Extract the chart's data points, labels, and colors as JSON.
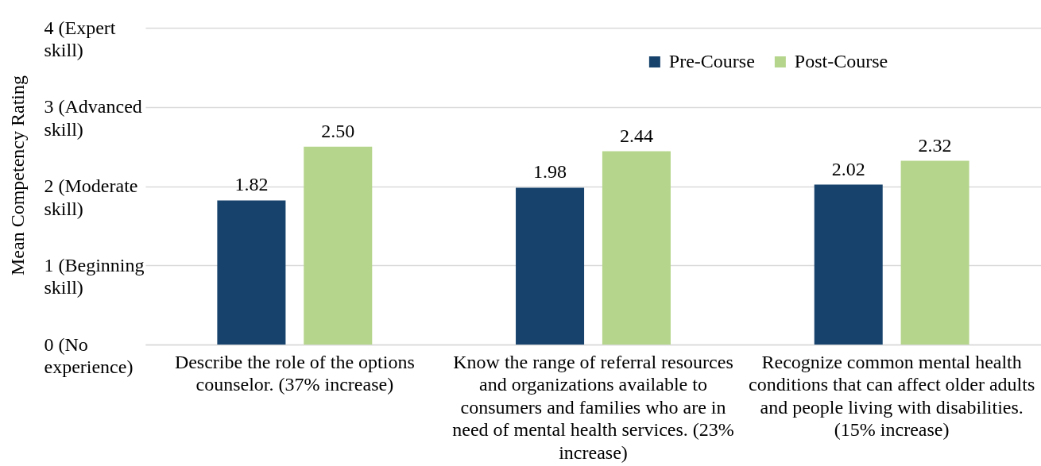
{
  "chart_data": {
    "type": "bar",
    "ylabel": "Mean Competency Rating",
    "categories": [
      "Describe the role of the options counselor. (37% increase)",
      "Know the range of referral resources and organizations available to consumers and families who are in need of mental health services. (23% increase)",
      "Recognize common mental health conditions that can affect older adults and people living with disabilities. (15% increase)"
    ],
    "series": [
      {
        "name": "Pre-Course",
        "color": "#16426c",
        "values": [
          1.82,
          1.98,
          2.02
        ],
        "value_labels": [
          "1.82",
          "1.98",
          "2.02"
        ]
      },
      {
        "name": "Post-Course",
        "color": "#b5d58c",
        "values": [
          2.5,
          2.44,
          2.32
        ],
        "value_labels": [
          "2.50",
          "2.44",
          "2.32"
        ]
      }
    ],
    "ylim": [
      0,
      4
    ],
    "yticks": [
      {
        "value": 0,
        "label": "0 (No experience)"
      },
      {
        "value": 1,
        "label": "1 (Beginning skill)"
      },
      {
        "value": 2,
        "label": "2 (Moderate skill)"
      },
      {
        "value": 3,
        "label": "3 (Advanced skill)"
      },
      {
        "value": 4,
        "label": "4 (Expert skill)"
      }
    ],
    "grid": "y",
    "legend": "top right"
  }
}
